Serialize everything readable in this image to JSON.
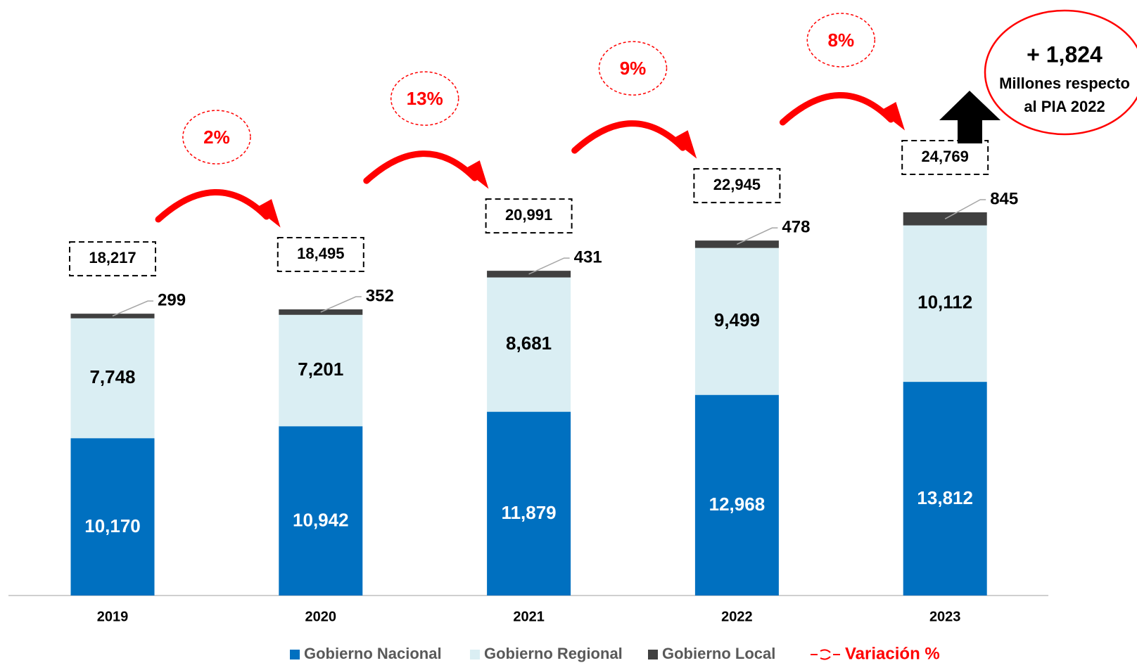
{
  "chart_data": {
    "type": "stacked_bar",
    "categories": [
      "2019",
      "2020",
      "2021",
      "2022",
      "2023"
    ],
    "series": [
      {
        "name": "Gobierno Nacional",
        "color": "#0070c0",
        "values": [
          10170,
          10942,
          11879,
          12968,
          13812
        ],
        "value_labels": [
          "10,170",
          "10,942",
          "11,879",
          "12,968",
          "13,812"
        ]
      },
      {
        "name": "Gobierno Regional",
        "color": "#daeef3",
        "values": [
          7748,
          7201,
          8681,
          9499,
          10112
        ],
        "value_labels": [
          "7,748",
          "7,201",
          "8,681",
          "9,499",
          "10,112"
        ]
      },
      {
        "name": "Gobierno Local",
        "color": "#404040",
        "values": [
          299,
          352,
          431,
          478,
          845
        ],
        "value_labels": [
          "299",
          "352",
          "431",
          "478",
          "845"
        ]
      }
    ],
    "totals": [
      18217,
      18495,
      20991,
      22945,
      24769
    ],
    "total_labels": [
      "18,217",
      "18,495",
      "20,991",
      "22,945",
      "24,769"
    ],
    "variation": {
      "name": "Variación %",
      "color": "#ff0000",
      "values": [
        2,
        13,
        9,
        8
      ],
      "value_labels": [
        "2%",
        "13%",
        "9%",
        "8%"
      ]
    },
    "annotation": {
      "value": 1824,
      "label": "+ 1,824",
      "lines": [
        "Millones respecto",
        "al PIA 2022"
      ]
    }
  }
}
